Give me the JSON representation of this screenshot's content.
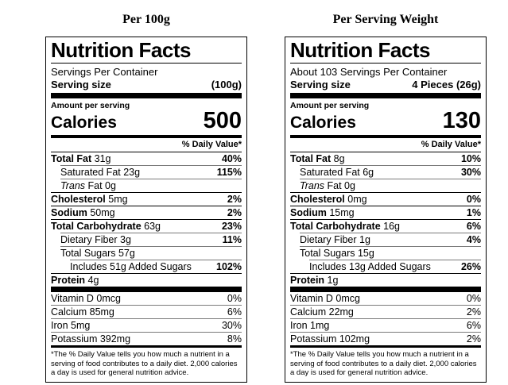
{
  "colors": {
    "text": "#000000",
    "background": "#ffffff",
    "divider": "#000000",
    "hairline": "#7a7a7a"
  },
  "columns": [
    {
      "title": "Per 100g",
      "label": {
        "heading": "Nutrition Facts",
        "servings_per_container": "Servings Per Container",
        "serving_size_label": "Serving size",
        "serving_size_value": "(100g)",
        "amount_per_serving": "Amount per serving",
        "calories_label": "Calories",
        "calories_value": "500",
        "daily_value_header": "% Daily Value*",
        "nutrients": [
          {
            "b": "Total Fat",
            "t": " 31g",
            "dv": "40%",
            "dvb": true,
            "ind": 0
          },
          {
            "t": "Saturated Fat 23g",
            "dv": "115%",
            "dvb": true,
            "ind": 1
          },
          {
            "i": "Trans",
            "t": " Fat 0g",
            "dv": "",
            "ind": 1
          },
          {
            "b": "Cholesterol",
            "t": " 5mg",
            "dv": "2%",
            "dvb": true,
            "ind": 0
          },
          {
            "b": "Sodium",
            "t": " 50mg",
            "dv": "2%",
            "dvb": true,
            "ind": 0
          },
          {
            "b": "Total Carbohydrate",
            "t": " 63g",
            "dv": "23%",
            "dvb": true,
            "ind": 0
          },
          {
            "t": "Dietary Fiber 3g",
            "dv": "11%",
            "dvb": true,
            "ind": 1
          },
          {
            "t": "Total Sugars 57g",
            "dv": "",
            "ind": 1
          },
          {
            "t": "Includes 51g Added Sugars",
            "dv": "102%",
            "dvb": true,
            "ind": 2
          },
          {
            "b": "Protein",
            "t": " 4g",
            "dv": "",
            "ind": 0
          }
        ],
        "vitamins": [
          {
            "t": "Vitamin D 0mcg",
            "dv": "0%",
            "ind": 0
          },
          {
            "t": "Calcium 85mg",
            "dv": "6%",
            "ind": 0
          },
          {
            "t": "Iron 5mg",
            "dv": "30%",
            "ind": 0
          },
          {
            "t": "Potassium 392mg",
            "dv": "8%",
            "ind": 0
          }
        ],
        "footnote": "*The % Daily Value tells you how much a nutrient in a serving of food contributes to a daily diet. 2,000 calories a day is used for general nutrition advice."
      }
    },
    {
      "title": "Per Serving Weight",
      "label": {
        "heading": "Nutrition Facts",
        "servings_per_container": "About 103 Servings Per Container",
        "serving_size_label": "Serving size",
        "serving_size_value": "4 Pieces (26g)",
        "amount_per_serving": "Amount per serving",
        "calories_label": "Calories",
        "calories_value": "130",
        "daily_value_header": "% Daily Value*",
        "nutrients": [
          {
            "b": "Total Fat",
            "t": " 8g",
            "dv": "10%",
            "dvb": true,
            "ind": 0
          },
          {
            "t": "Saturated Fat 6g",
            "dv": "30%",
            "dvb": true,
            "ind": 1
          },
          {
            "i": "Trans",
            "t": " Fat 0g",
            "dv": "",
            "ind": 1
          },
          {
            "b": "Cholesterol",
            "t": " 0mg",
            "dv": "0%",
            "dvb": true,
            "ind": 0
          },
          {
            "b": "Sodium",
            "t": " 15mg",
            "dv": "1%",
            "dvb": true,
            "ind": 0
          },
          {
            "b": "Total Carbohydrate",
            "t": " 16g",
            "dv": "6%",
            "dvb": true,
            "ind": 0
          },
          {
            "t": "Dietary Fiber 1g",
            "dv": "4%",
            "dvb": true,
            "ind": 1
          },
          {
            "t": "Total Sugars 15g",
            "dv": "",
            "ind": 1
          },
          {
            "t": "Includes 13g Added Sugars",
            "dv": "26%",
            "dvb": true,
            "ind": 2
          },
          {
            "b": "Protein",
            "t": " 1g",
            "dv": "",
            "ind": 0
          }
        ],
        "vitamins": [
          {
            "t": "Vitamin D 0mcg",
            "dv": "0%",
            "ind": 0
          },
          {
            "t": "Calcium 22mg",
            "dv": "2%",
            "ind": 0
          },
          {
            "t": "Iron 1mg",
            "dv": "6%",
            "ind": 0
          },
          {
            "t": "Potassium 102mg",
            "dv": "2%",
            "ind": 0
          }
        ],
        "footnote": "*The % Daily Value tells you how much a nutrient in a serving of food contributes to a daily diet. 2,000 calories a day is used for general nutrition advice."
      }
    }
  ]
}
